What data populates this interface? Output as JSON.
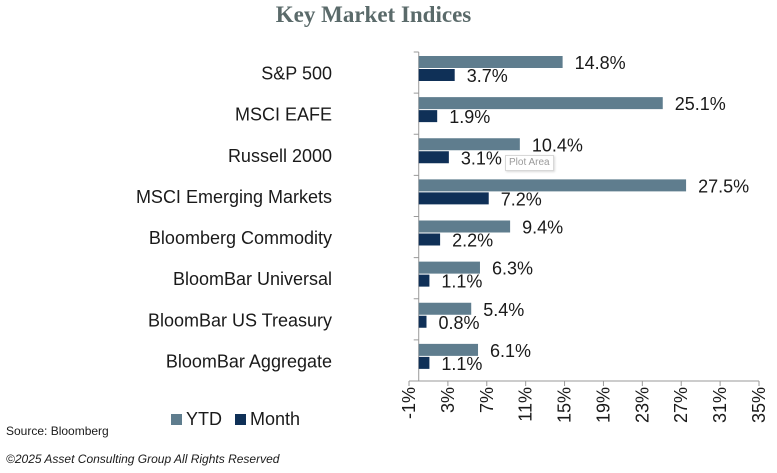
{
  "title": "Key Market Indices",
  "source": "Source: Bloomberg",
  "copyright": "©2025 Asset Consulting Group All Rights Reserved",
  "tooltip": "Plot Area",
  "colors": {
    "ytd": "#5f7d8e",
    "month": "#0f3057",
    "axis": "#9a9a9a",
    "text": "#1a1a1a"
  },
  "chart_data": {
    "type": "bar",
    "orientation": "horizontal",
    "categories": [
      "S&P 500",
      "MSCI EAFE",
      "Russell 2000",
      "MSCI Emerging Markets",
      "Bloomberg Commodity",
      "BloomBar Universal",
      "BloomBar US Treasury",
      "BloomBar Aggregate"
    ],
    "series": [
      {
        "name": "YTD",
        "values": [
          14.8,
          25.1,
          10.4,
          27.5,
          9.4,
          6.3,
          5.4,
          6.1
        ],
        "labels": [
          "14.8%",
          "25.1%",
          "10.4%",
          "27.5%",
          "9.4%",
          "6.3%",
          "5.4%",
          "6.1%"
        ]
      },
      {
        "name": "Month",
        "values": [
          3.7,
          1.9,
          3.1,
          7.2,
          2.2,
          1.1,
          0.8,
          1.1
        ],
        "labels": [
          "3.7%",
          "1.9%",
          "3.1%",
          "7.2%",
          "2.2%",
          "1.1%",
          "0.8%",
          "1.1%"
        ]
      }
    ],
    "xlim": [
      -1,
      35
    ],
    "ticks": [
      -1,
      3,
      7,
      11,
      15,
      19,
      23,
      27,
      31,
      35
    ],
    "tick_labels": [
      "-1%",
      "3%",
      "7%",
      "11%",
      "15%",
      "19%",
      "23%",
      "27%",
      "31%",
      "35%"
    ],
    "legend": [
      "YTD",
      "Month"
    ],
    "legend_position": "bottom-left",
    "grid": false
  }
}
